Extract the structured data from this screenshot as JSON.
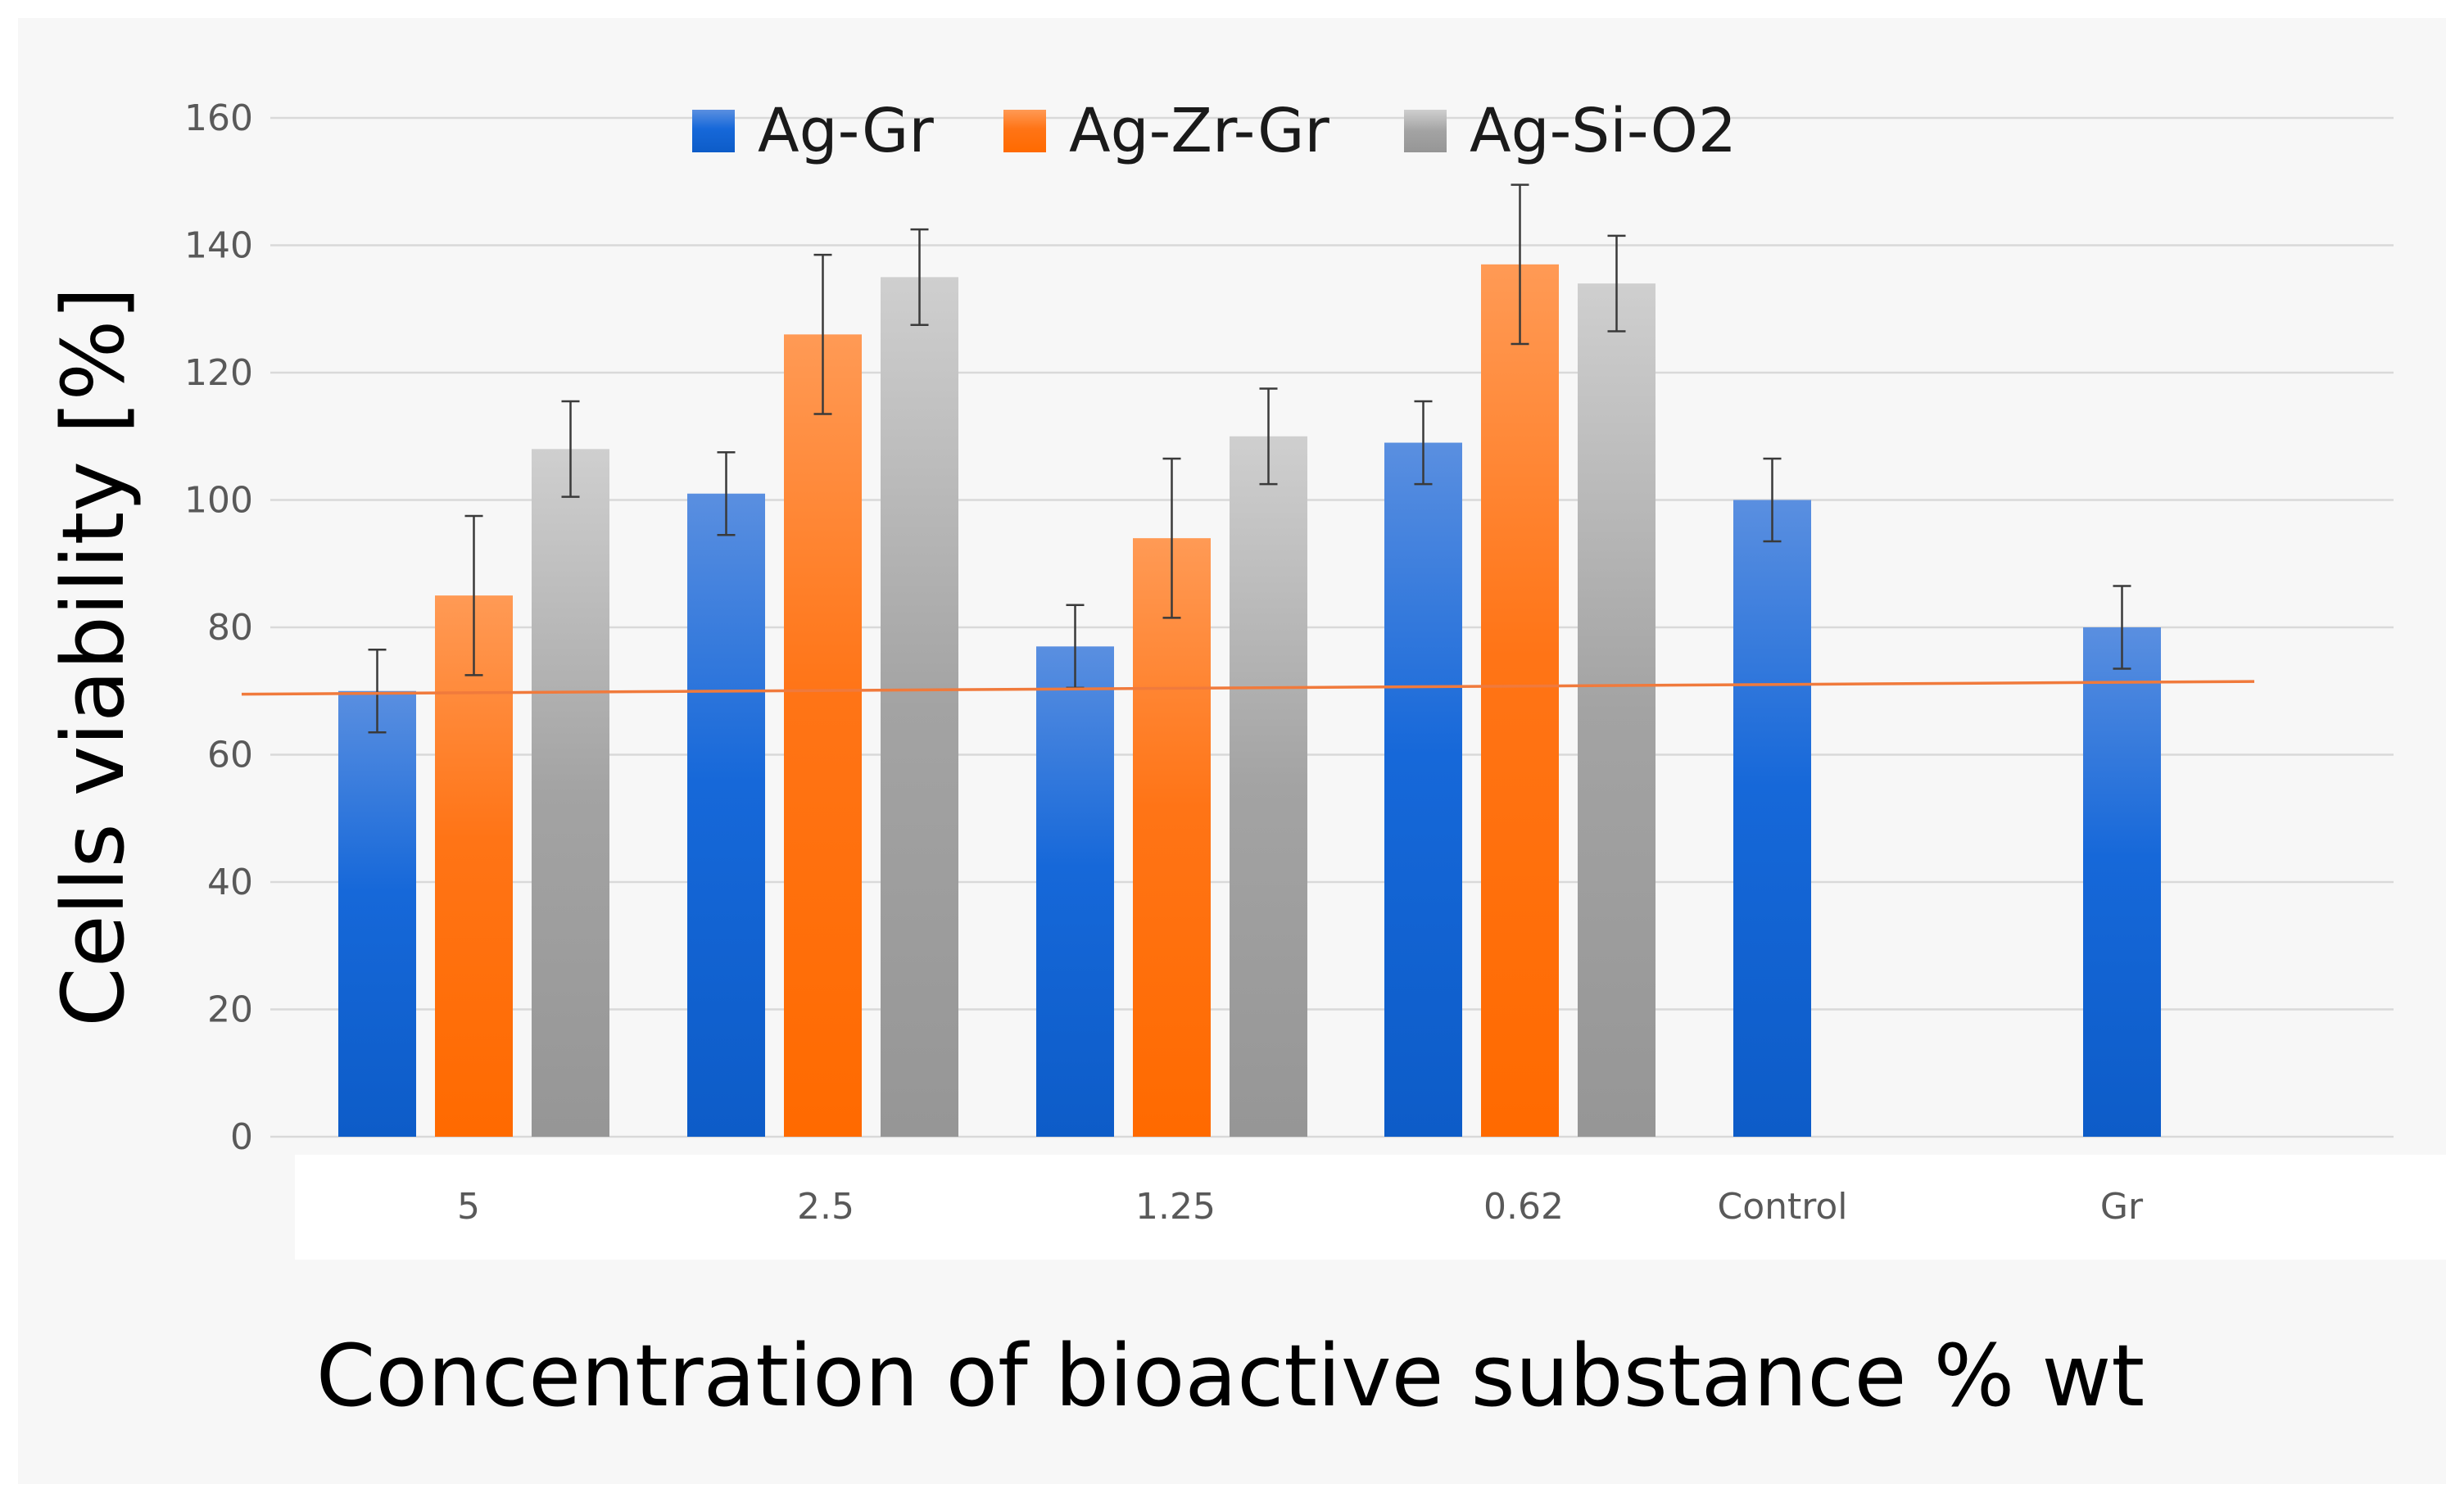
{
  "chart_data": {
    "type": "bar",
    "title": "",
    "xlabel": "Concentration of bioactive substance % wt",
    "ylabel": "Cells  viability  [%]",
    "ylim": [
      0,
      160
    ],
    "yticks": [
      "0",
      "20",
      "40",
      "60",
      "80",
      "100",
      "120",
      "140",
      "160"
    ],
    "grid": true,
    "legend_position": "top-center",
    "categories": [
      "5",
      "2.5",
      "1.25",
      "0.62",
      "Control",
      "Gr"
    ],
    "series": [
      {
        "name": "Ag-Gr",
        "color": "#1565d8",
        "values": [
          70,
          101,
          77,
          109,
          100,
          80
        ],
        "errors": [
          6.5,
          6.5,
          6.5,
          6.5,
          6.5,
          6.5
        ]
      },
      {
        "name": "Ag-Zr-Gr",
        "color": "#ff6a00",
        "values": [
          85,
          126,
          94,
          137,
          null,
          null
        ],
        "errors": [
          12.5,
          12.5,
          12.5,
          12.5,
          null,
          null
        ]
      },
      {
        "name": "Ag-Si-O2",
        "color": "#a0a0a0",
        "values": [
          108,
          135,
          110,
          134,
          null,
          null
        ],
        "errors": [
          7.5,
          7.5,
          7.5,
          7.5,
          null,
          null
        ]
      }
    ],
    "reference_line": {
      "color": "#f07a3c",
      "start": 69.5,
      "end": 71.5
    }
  }
}
